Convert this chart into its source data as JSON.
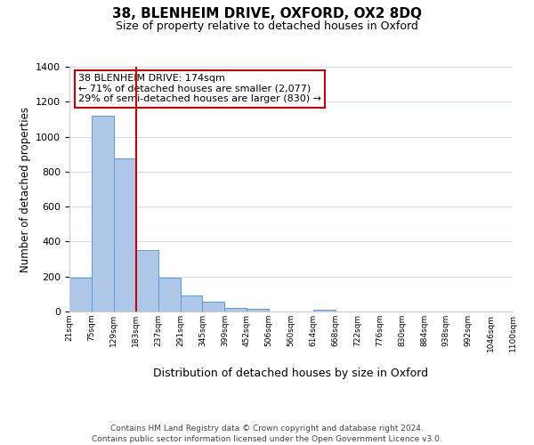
{
  "title": "38, BLENHEIM DRIVE, OXFORD, OX2 8DQ",
  "subtitle": "Size of property relative to detached houses in Oxford",
  "xlabel": "Distribution of detached houses by size in Oxford",
  "ylabel": "Number of detached properties",
  "bin_labels": [
    "21sqm",
    "75sqm",
    "129sqm",
    "183sqm",
    "237sqm",
    "291sqm",
    "345sqm",
    "399sqm",
    "452sqm",
    "506sqm",
    "560sqm",
    "614sqm",
    "668sqm",
    "722sqm",
    "776sqm",
    "830sqm",
    "884sqm",
    "938sqm",
    "992sqm",
    "1046sqm",
    "1100sqm"
  ],
  "bar_heights": [
    193,
    1120,
    878,
    350,
    193,
    93,
    55,
    22,
    15,
    0,
    0,
    12,
    0,
    0,
    0,
    0,
    0,
    0,
    0,
    0
  ],
  "bar_color": "#aec6e8",
  "bar_edgecolor": "#5b9bd5",
  "vline_x": 3,
  "vline_color": "#cc0000",
  "annotation_title": "38 BLENHEIM DRIVE: 174sqm",
  "annotation_line1": "← 71% of detached houses are smaller (2,077)",
  "annotation_line2": "29% of semi-detached houses are larger (830) →",
  "annotation_box_color": "#cc0000",
  "ylim": [
    0,
    1400
  ],
  "yticks": [
    0,
    200,
    400,
    600,
    800,
    1000,
    1200,
    1400
  ],
  "footer_line1": "Contains HM Land Registry data © Crown copyright and database right 2024.",
  "footer_line2": "Contains public sector information licensed under the Open Government Licence v3.0.",
  "background_color": "#ffffff",
  "grid_color": "#d0dce8"
}
